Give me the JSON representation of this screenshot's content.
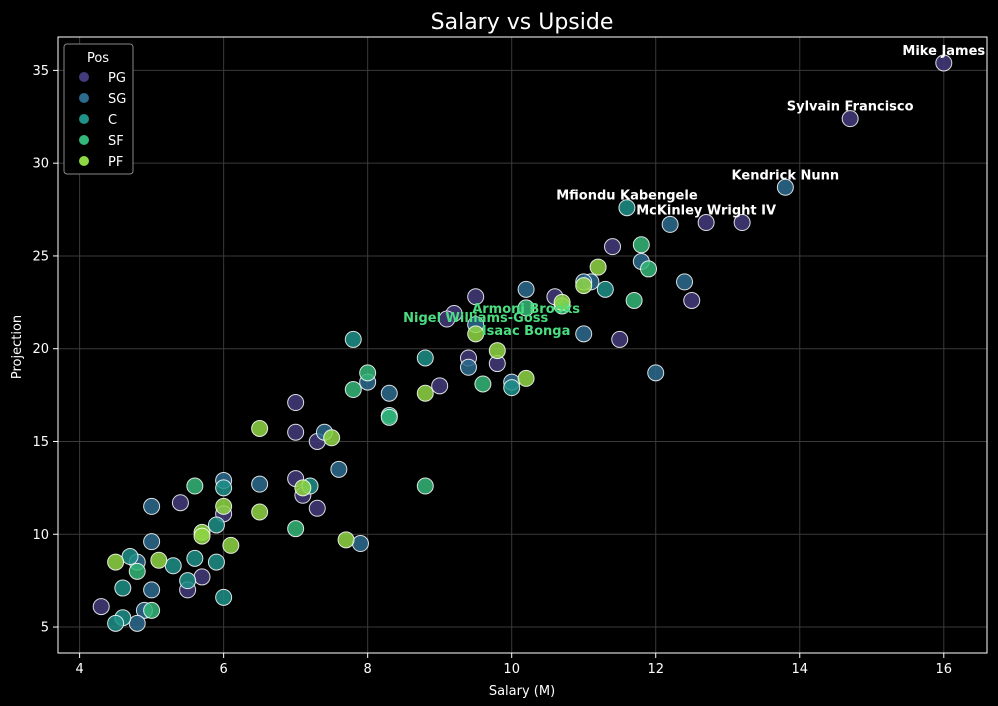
{
  "chart_data": {
    "type": "scatter",
    "title": "Salary vs Upside",
    "xlabel": "Salary (M)",
    "ylabel": "Projection",
    "xlim": [
      3.7,
      16.6
    ],
    "ylim": [
      3.6,
      36.8
    ],
    "x_ticks": [
      4,
      6,
      8,
      10,
      12,
      14,
      16
    ],
    "y_ticks": [
      5,
      10,
      15,
      20,
      25,
      30,
      35
    ],
    "grid": true,
    "legend": {
      "title": "Pos",
      "placement": "top-left",
      "entries": [
        "PG",
        "SG",
        "C",
        "SF",
        "PF"
      ]
    },
    "colors": {
      "PG": "#433c7c",
      "SG": "#2d6b8e",
      "C": "#1f9189",
      "SF": "#35b779",
      "PF": "#8fd744",
      "background": "#000000",
      "grid": "#3a3a3a",
      "marker_edge": "#ffffff",
      "annotation_default": "#ffffff",
      "annotation_highlight": "#4ade80"
    },
    "series": [
      {
        "name": "PG",
        "points": [
          [
            16.0,
            35.4
          ],
          [
            14.7,
            32.4
          ],
          [
            12.7,
            26.8
          ],
          [
            13.2,
            26.8
          ],
          [
            11.4,
            25.5
          ],
          [
            12.5,
            22.6
          ],
          [
            11.5,
            20.5
          ],
          [
            10.6,
            22.8
          ],
          [
            9.5,
            22.8
          ],
          [
            9.2,
            21.9
          ],
          [
            9.1,
            21.6
          ],
          [
            9.4,
            19.5
          ],
          [
            9.8,
            19.2
          ],
          [
            9.0,
            18.0
          ],
          [
            7.0,
            17.1
          ],
          [
            7.0,
            15.5
          ],
          [
            7.3,
            15.0
          ],
          [
            7.0,
            13.0
          ],
          [
            7.1,
            12.1
          ],
          [
            7.3,
            11.4
          ],
          [
            6.0,
            11.1
          ],
          [
            5.4,
            11.7
          ],
          [
            5.7,
            7.7
          ],
          [
            5.5,
            7.0
          ],
          [
            4.3,
            6.1
          ]
        ]
      },
      {
        "name": "SG",
        "points": [
          [
            13.8,
            28.7
          ],
          [
            12.2,
            26.7
          ],
          [
            11.8,
            24.7
          ],
          [
            12.4,
            23.6
          ],
          [
            11.1,
            23.6
          ],
          [
            11.0,
            23.6
          ],
          [
            10.2,
            23.2
          ],
          [
            9.5,
            21.3
          ],
          [
            11.0,
            20.8
          ],
          [
            12.0,
            18.7
          ],
          [
            9.4,
            19.0
          ],
          [
            10.0,
            18.2
          ],
          [
            8.3,
            17.6
          ],
          [
            8.0,
            18.2
          ],
          [
            7.4,
            15.5
          ],
          [
            7.6,
            13.5
          ],
          [
            6.5,
            12.7
          ],
          [
            6.0,
            12.9
          ],
          [
            5.0,
            11.5
          ],
          [
            5.0,
            9.6
          ],
          [
            7.9,
            9.5
          ],
          [
            4.8,
            8.5
          ],
          [
            5.0,
            7.0
          ],
          [
            4.9,
            5.9
          ],
          [
            4.8,
            5.2
          ]
        ]
      },
      {
        "name": "C",
        "points": [
          [
            11.6,
            27.6
          ],
          [
            11.3,
            23.2
          ],
          [
            7.8,
            20.5
          ],
          [
            8.8,
            19.5
          ],
          [
            10.0,
            17.9
          ],
          [
            8.3,
            16.4
          ],
          [
            7.2,
            12.6
          ],
          [
            6.0,
            12.5
          ],
          [
            5.9,
            10.5
          ],
          [
            5.6,
            8.7
          ],
          [
            4.7,
            8.8
          ],
          [
            5.3,
            8.3
          ],
          [
            5.9,
            8.5
          ],
          [
            4.6,
            7.1
          ],
          [
            5.5,
            7.5
          ],
          [
            6.0,
            6.6
          ],
          [
            4.6,
            5.5
          ],
          [
            4.5,
            5.2
          ]
        ]
      },
      {
        "name": "SF",
        "points": [
          [
            11.8,
            25.6
          ],
          [
            11.9,
            24.3
          ],
          [
            11.7,
            22.6
          ],
          [
            10.2,
            22.2
          ],
          [
            10.7,
            22.3
          ],
          [
            7.8,
            17.8
          ],
          [
            8.0,
            18.7
          ],
          [
            9.6,
            18.1
          ],
          [
            8.8,
            12.6
          ],
          [
            8.3,
            16.3
          ],
          [
            7.0,
            10.3
          ],
          [
            5.6,
            12.6
          ],
          [
            4.8,
            8.0
          ],
          [
            5.0,
            5.9
          ]
        ]
      },
      {
        "name": "PF",
        "points": [
          [
            11.2,
            24.4
          ],
          [
            11.0,
            23.4
          ],
          [
            10.7,
            22.5
          ],
          [
            9.5,
            20.8
          ],
          [
            9.8,
            19.9
          ],
          [
            10.2,
            18.4
          ],
          [
            8.8,
            17.6
          ],
          [
            6.5,
            15.7
          ],
          [
            7.5,
            15.2
          ],
          [
            7.1,
            12.5
          ],
          [
            6.5,
            11.2
          ],
          [
            6.0,
            11.5
          ],
          [
            5.7,
            10.1
          ],
          [
            5.7,
            9.9
          ],
          [
            6.1,
            9.4
          ],
          [
            5.1,
            8.6
          ],
          [
            4.5,
            8.5
          ],
          [
            7.7,
            9.7
          ]
        ]
      }
    ],
    "annotations": [
      {
        "text": "Mike James",
        "x": 16.0,
        "y": 35.4,
        "highlight": false
      },
      {
        "text": "Sylvain Francisco",
        "x": 14.7,
        "y": 32.4,
        "highlight": false
      },
      {
        "text": "Kendrick Nunn",
        "x": 13.8,
        "y": 28.7,
        "highlight": false
      },
      {
        "text": "Mfiondu Kabengele",
        "x": 11.6,
        "y": 27.6,
        "highlight": false
      },
      {
        "text": "McKinley Wright IV",
        "x": 12.7,
        "y": 26.8,
        "highlight": false
      },
      {
        "text": "Armoni Brooks",
        "x": 10.2,
        "y": 21.5,
        "highlight": true
      },
      {
        "text": "Nigel Williams-Goss",
        "x": 9.5,
        "y": 21.0,
        "highlight": true
      },
      {
        "text": "Isaac Bonga",
        "x": 10.2,
        "y": 20.3,
        "highlight": true
      }
    ]
  }
}
